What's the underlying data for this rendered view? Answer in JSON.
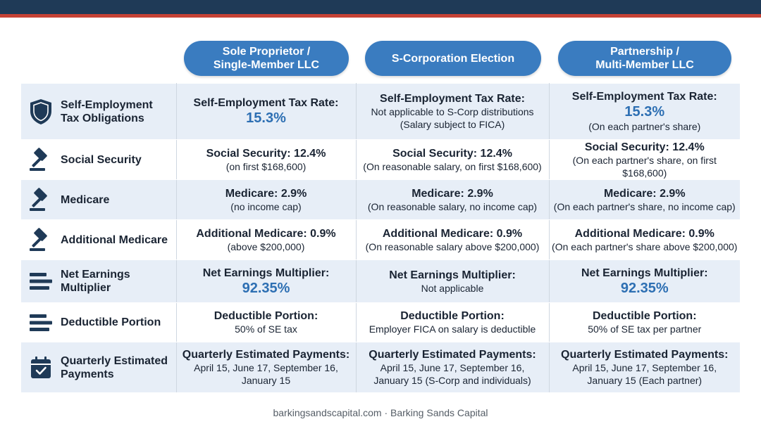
{
  "colors": {
    "navy": "#1f3a57",
    "accent_red": "#c64235",
    "pill_blue": "#3a7cc0",
    "highlight_blue": "#2d6fb3",
    "row_shade": "#e7eef7"
  },
  "columns": [
    {
      "line1": "Sole Proprietor /",
      "line2": "Single-Member LLC"
    },
    {
      "line1": "S-Corporation Election",
      "line2": ""
    },
    {
      "line1": "Partnership /",
      "line2": "Multi-Member LLC"
    }
  ],
  "rows": [
    {
      "label": "Self-Employment Tax Obligations",
      "label_l1": "Self-Employment",
      "label_l2": "Tax Obligations",
      "icon": "shield-icon",
      "cells": [
        {
          "title": "Self-Employment Tax Rate:",
          "big": "15.3%"
        },
        {
          "title": "Self-Employment Tax Rate:",
          "sub1": "Not applicable to S-Corp distributions",
          "sub2": "(Salary subject to FICA)"
        },
        {
          "title": "Self-Employment Tax Rate:",
          "big": "15.3%",
          "sub1": "(On each partner's share)"
        }
      ]
    },
    {
      "label": "Social Security",
      "icon": "gavel-icon",
      "cells": [
        {
          "title": "Social Security: 12.4%",
          "sub1": "(on first $168,600)"
        },
        {
          "title": "Social Security: 12.4%",
          "sub1": "(On reasonable salary, on first $168,600)"
        },
        {
          "title": "Social Security: 12.4%",
          "sub1": "(On each partner's share, on first $168,600)"
        }
      ]
    },
    {
      "label": "Medicare",
      "icon": "gavel-icon",
      "cells": [
        {
          "title": "Medicare: 2.9%",
          "sub1": "(no income cap)"
        },
        {
          "title": "Medicare: 2.9%",
          "sub1": "(On reasonable salary, no income cap)"
        },
        {
          "title": "Medicare: 2.9%",
          "sub1": "(On each partner's share, no income cap)"
        }
      ]
    },
    {
      "label": "Additional Medicare",
      "icon": "gavel-icon",
      "cells": [
        {
          "title": "Additional Medicare: 0.9%",
          "sub1": "(above $200,000)"
        },
        {
          "title": "Additional Medicare: 0.9%",
          "sub1": "(On reasonable salary above $200,000)"
        },
        {
          "title": "Additional Medicare: 0.9%",
          "sub1": "(On each partner's share above $200,000)"
        }
      ]
    },
    {
      "label": "Net Earnings Multiplier",
      "label_l1": "Net Earnings",
      "label_l2": "Multiplier",
      "icon": "lines-icon",
      "cells": [
        {
          "title": "Net Earnings Multiplier:",
          "big": "92.35%"
        },
        {
          "title": "Net Earnings Multiplier:",
          "sub1": "Not applicable"
        },
        {
          "title": "Net Earnings Multiplier:",
          "big": "92.35%"
        }
      ]
    },
    {
      "label": "Deductible Portion",
      "icon": "lines-icon",
      "cells": [
        {
          "title": "Deductible Portion:",
          "sub1": "50% of SE tax"
        },
        {
          "title": "Deductible Portion:",
          "sub1": "Employer FICA on salary is deductible"
        },
        {
          "title": "Deductible Portion:",
          "sub1": "50% of SE tax per partner"
        }
      ]
    },
    {
      "label": "Quarterly Estimated Payments",
      "label_l1": "Quarterly Estimated",
      "label_l2": "Payments",
      "icon": "calendar-icon",
      "cells": [
        {
          "title": "Quarterly Estimated Payments:",
          "sub1": "April 15, June 17, September 16,",
          "sub2": "January 15"
        },
        {
          "title": "Quarterly Estimated Payments:",
          "sub1": "April 15, June 17, September 16,",
          "sub2": "January 15 (S-Corp and individuals)"
        },
        {
          "title": "Quarterly Estimated Payments:",
          "sub1": "April 15, June 17, September 16,",
          "sub2": "January 15 (Each partner)"
        }
      ]
    }
  ],
  "footer": "barkingsandscapital.com · Barking Sands Capital"
}
